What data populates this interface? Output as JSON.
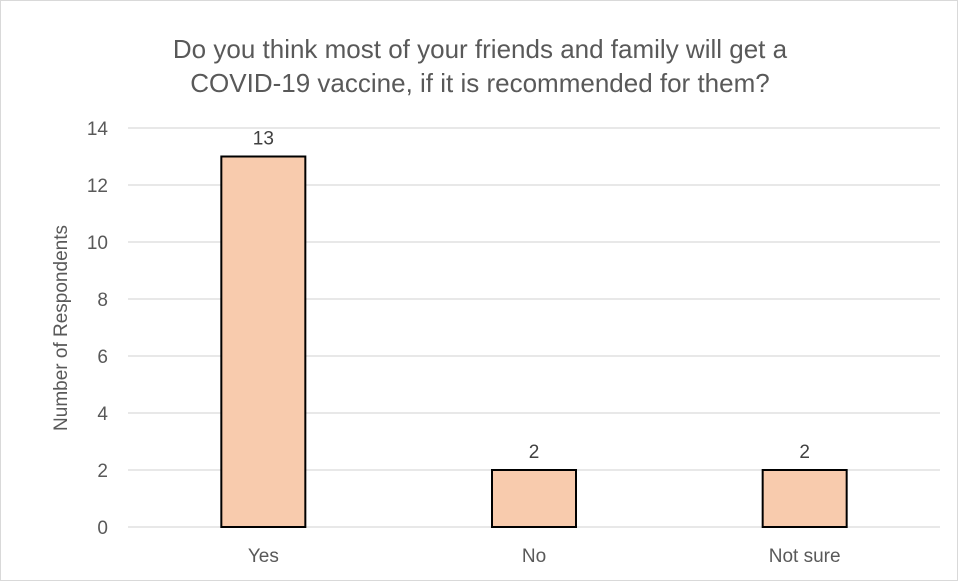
{
  "chart_data": {
    "type": "bar",
    "title": "Do you think most of your friends and family will get a\nCOVID-19 vaccine, if it is recommended for them?",
    "xlabel": "",
    "ylabel": "Number of Respondents",
    "categories": [
      "Yes",
      "No",
      "Not sure"
    ],
    "values": [
      13,
      2,
      2
    ],
    "data_labels": [
      "13",
      "2",
      "2"
    ],
    "ylim": [
      0,
      14
    ],
    "yticks": [
      0,
      2,
      4,
      6,
      8,
      10,
      12,
      14
    ],
    "grid": true,
    "legend": "none",
    "bar_color": "#f8cbad",
    "bar_edge_color": "#000000",
    "gridline_color": "#d9d9d9"
  }
}
